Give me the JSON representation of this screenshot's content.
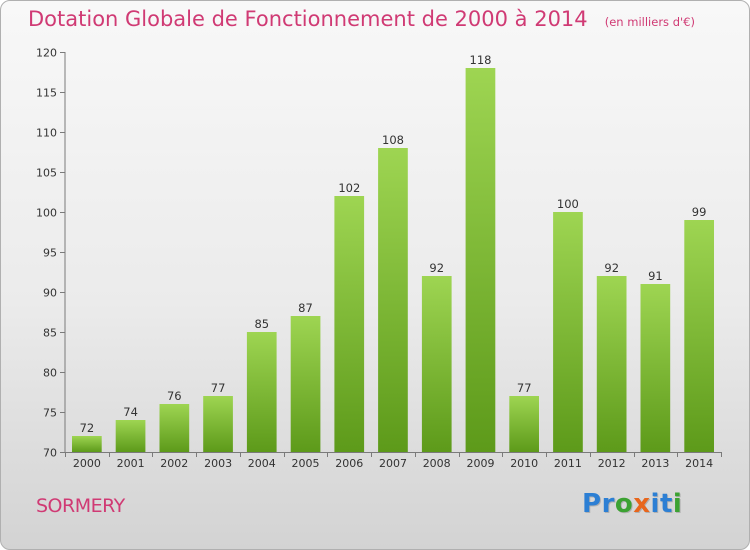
{
  "header": {
    "title": "Dotation Globale de Fonctionnement de 2000 à 2014",
    "unit": "(en milliers d'€)"
  },
  "footer": {
    "commune": "SORMERY",
    "brand_letters": [
      "P",
      "r",
      "o",
      "x",
      "i",
      "t",
      "i"
    ]
  },
  "colors": {
    "title": "#d03a74",
    "bar_light": "#9ed552",
    "bar_dark": "#5d9a1a",
    "brand": [
      "#2c7fd4",
      "#2c7fd4",
      "#3ca232",
      "#e8661c",
      "#2c7fd4",
      "#2c7fd4",
      "#3ca232"
    ]
  },
  "chart_data": {
    "type": "bar",
    "title": "Dotation Globale de Fonctionnement de 2000 à 2014",
    "subtitle": "(en milliers d'€)",
    "xlabel": "",
    "ylabel": "",
    "categories": [
      "2000",
      "2001",
      "2002",
      "2003",
      "2004",
      "2005",
      "2006",
      "2007",
      "2008",
      "2009",
      "2010",
      "2011",
      "2012",
      "2013",
      "2014"
    ],
    "values": [
      72,
      74,
      76,
      77,
      85,
      87,
      102,
      108,
      92,
      118,
      77,
      100,
      92,
      91,
      99
    ],
    "ylim": [
      70,
      120
    ],
    "yticks": [
      70,
      75,
      80,
      85,
      90,
      95,
      100,
      105,
      110,
      115,
      120
    ],
    "grid": false,
    "legend": "none"
  }
}
